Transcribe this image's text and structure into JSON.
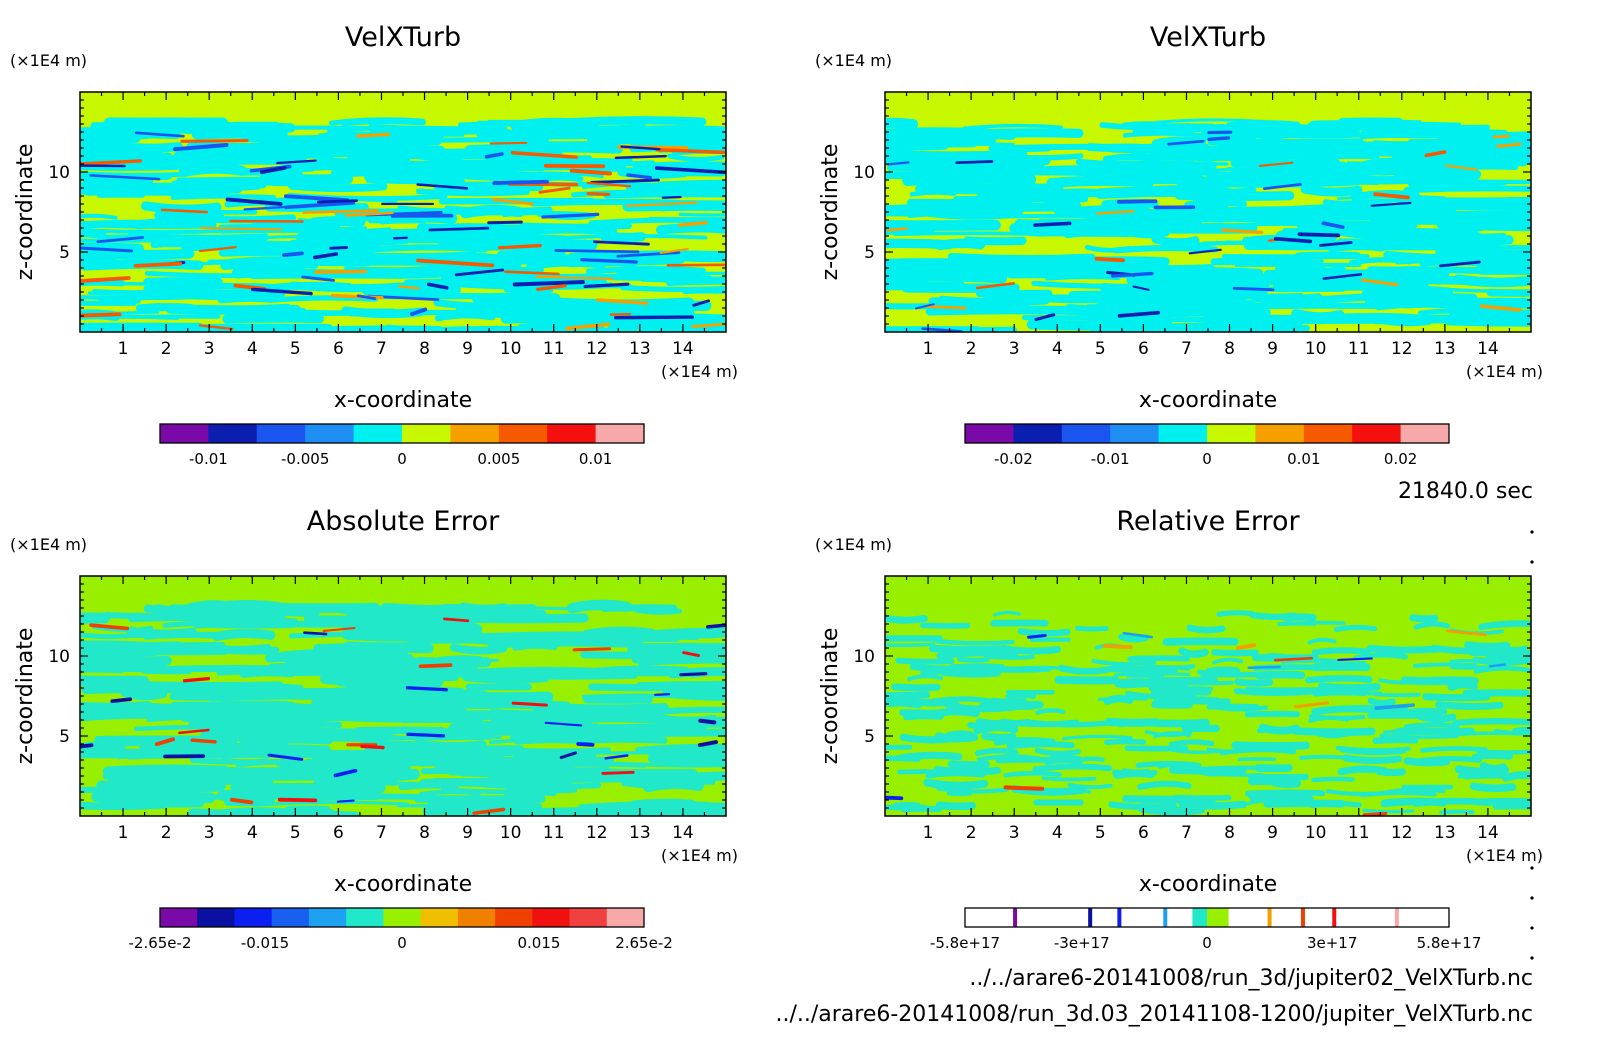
{
  "time_label": "21840.0 sec",
  "file_paths": [
    "../../arare6-20141008/run_3d/jupiter02_VelXTurb.nc",
    "../../arare6-20141008/run_3d.03_20141108-1200/jupiter_VelXTurb.nc"
  ],
  "chart_data": [
    {
      "type": "heatmap",
      "title": "VelXTurb",
      "xlabel": "x-coordinate",
      "ylabel": "z-coordinate",
      "x_unit": "(×1E4 m)",
      "y_unit": "(×1E4 m)",
      "xlim": [
        0,
        15
      ],
      "ylim": [
        0,
        15
      ],
      "x_ticks": [
        "1",
        "2",
        "3",
        "4",
        "5",
        "6",
        "7",
        "8",
        "9",
        "10",
        "11",
        "12",
        "13",
        "14"
      ],
      "y_ticks": [
        "5",
        "10"
      ],
      "colorbar": {
        "colors": [
          "#7a0aa8",
          "#0a1fb0",
          "#1a55f0",
          "#1e8ef2",
          "#00f0f0",
          "#c8f800",
          "#f5a000",
          "#f55a00",
          "#f51010",
          "#f7a8a8"
        ],
        "tick_labels": [
          "-0.01",
          "-0.005",
          "0",
          "0.005",
          "0.01"
        ],
        "range": [
          -0.0125,
          0.0125
        ]
      },
      "palette": {
        "background": "#c8f800",
        "primary": "#00f0f0"
      }
    },
    {
      "type": "heatmap",
      "title": "VelXTurb",
      "xlabel": "x-coordinate",
      "ylabel": "z-coordinate",
      "x_unit": "(×1E4 m)",
      "y_unit": "(×1E4 m)",
      "xlim": [
        0,
        15
      ],
      "ylim": [
        0,
        15
      ],
      "x_ticks": [
        "1",
        "2",
        "3",
        "4",
        "5",
        "6",
        "7",
        "8",
        "9",
        "10",
        "11",
        "12",
        "13",
        "14"
      ],
      "y_ticks": [
        "5",
        "10"
      ],
      "colorbar": {
        "colors": [
          "#7a0aa8",
          "#0a1fb0",
          "#1a55f0",
          "#1e8ef2",
          "#00f0f0",
          "#c8f800",
          "#f5a000",
          "#f55a00",
          "#f51010",
          "#f7a8a8"
        ],
        "tick_labels": [
          "-0.02",
          "-0.01",
          "0",
          "0.01",
          "0.02"
        ],
        "range": [
          -0.025,
          0.025
        ]
      },
      "palette": {
        "background": "#c8f800",
        "primary": "#00f0f0"
      }
    },
    {
      "type": "heatmap",
      "title": "Absolute Error",
      "xlabel": "x-coordinate",
      "ylabel": "z-coordinate",
      "x_unit": "(×1E4 m)",
      "y_unit": "(×1E4 m)",
      "xlim": [
        0,
        15
      ],
      "ylim": [
        0,
        15
      ],
      "x_ticks": [
        "1",
        "2",
        "3",
        "4",
        "5",
        "6",
        "7",
        "8",
        "9",
        "10",
        "11",
        "12",
        "13",
        "14"
      ],
      "y_ticks": [
        "5",
        "10"
      ],
      "colorbar": {
        "colors": [
          "#7a0aa8",
          "#0a10a0",
          "#0a1ff0",
          "#1a60f0",
          "#1ea0f0",
          "#20e8c8",
          "#98f000",
          "#f0c000",
          "#f08000",
          "#f04000",
          "#f01010",
          "#f04040",
          "#f7a8a8"
        ],
        "tick_labels": [
          "-2.65e-2",
          "-0.015",
          "0",
          "0.015",
          "2.65e-2"
        ],
        "range": [
          -0.0265,
          0.0265
        ]
      },
      "palette": {
        "background": "#98f000",
        "primary": "#20e8c8"
      }
    },
    {
      "type": "heatmap",
      "title": "Relative Error",
      "xlabel": "x-coordinate",
      "ylabel": "z-coordinate",
      "x_unit": "(×1E4 m)",
      "y_unit": "(×1E4 m)",
      "xlim": [
        0,
        15
      ],
      "ylim": [
        0,
        15
      ],
      "x_ticks": [
        "1",
        "2",
        "3",
        "4",
        "5",
        "6",
        "7",
        "8",
        "9",
        "10",
        "11",
        "12",
        "13",
        "14"
      ],
      "y_ticks": [
        "5",
        "10"
      ],
      "colorbar": {
        "tick_labels": [
          "-5.8e+17",
          "-3e+17",
          "0",
          "3e+17",
          "5.8e+17"
        ],
        "range": [
          -5.8e+17,
          5.8e+17
        ],
        "bands": [
          {
            "from": -5.8e+17,
            "to": -3.5e+16,
            "color": "#ffffff"
          },
          {
            "from": -3.5e+16,
            "to": 0,
            "color": "#20e8c8"
          },
          {
            "from": 0,
            "to": 5.2e+16,
            "color": "#98f000"
          },
          {
            "from": 5.2e+16,
            "to": 5.8e+17,
            "color": "#ffffff"
          }
        ],
        "marks": [
          {
            "value": -4.6e+17,
            "color": "#7a0aa8"
          },
          {
            "value": -2.8e+17,
            "color": "#0a10a0"
          },
          {
            "value": -2.1e+17,
            "color": "#0a1ff0"
          },
          {
            "value": -1e+17,
            "color": "#1ea0f0"
          },
          {
            "value": 1.5e+17,
            "color": "#f0a000"
          },
          {
            "value": 2.3e+17,
            "color": "#f04000"
          },
          {
            "value": 3.05e+17,
            "color": "#f01010"
          },
          {
            "value": 4.55e+17,
            "color": "#f7a8a8"
          }
        ]
      },
      "palette": {
        "background": "#98f000",
        "primary": "#20e8c8"
      }
    }
  ]
}
